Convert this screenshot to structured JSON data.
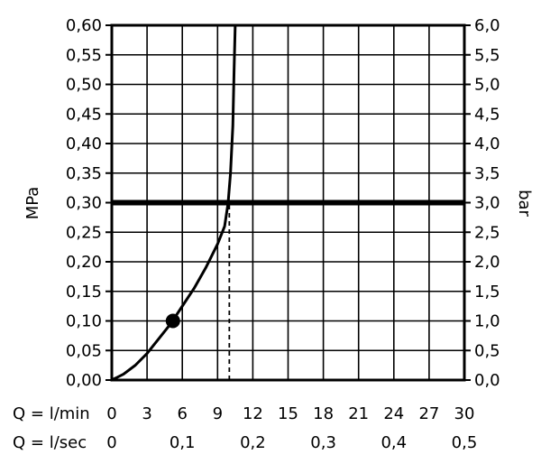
{
  "chart_data": {
    "type": "line",
    "title": "",
    "ylabel_left": "MPa",
    "ylabel_right": "bar",
    "x_primary": {
      "label": "Q = l/min",
      "ticks": [
        0,
        3,
        6,
        9,
        12,
        15,
        18,
        21,
        24,
        27,
        30
      ],
      "tick_labels": [
        "0",
        "3",
        "6",
        "9",
        "12",
        "15",
        "18",
        "21",
        "24",
        "27",
        "30"
      ],
      "range": [
        0,
        30
      ]
    },
    "x_secondary": {
      "label": "Q = l/sec",
      "ticks": [
        0,
        0.1,
        0.2,
        0.3,
        0.4,
        0.5
      ],
      "tick_labels": [
        "0",
        "0,1",
        "0,2",
        "0,3",
        "0,4",
        "0,5"
      ],
      "range": [
        0,
        0.5
      ]
    },
    "y_left": {
      "ticks": [
        0,
        0.05,
        0.1,
        0.15,
        0.2,
        0.25,
        0.3,
        0.35,
        0.4,
        0.45,
        0.5,
        0.55,
        0.6
      ],
      "tick_labels": [
        "0,00",
        "0,05",
        "0,10",
        "0,15",
        "0,20",
        "0,25",
        "0,30",
        "0,35",
        "0,40",
        "0,45",
        "0,50",
        "0,55",
        "0,60"
      ],
      "range": [
        0,
        0.6
      ]
    },
    "y_right": {
      "ticks": [
        0,
        0.5,
        1,
        1.5,
        2,
        2.5,
        3,
        3.5,
        4,
        4.5,
        5,
        5.5,
        6
      ],
      "tick_labels": [
        "0,0",
        "0,5",
        "1,0",
        "1,5",
        "2,0",
        "2,5",
        "3,0",
        "3,5",
        "4,0",
        "4,5",
        "5,0",
        "5,5",
        "6,0"
      ],
      "range": [
        0,
        6
      ]
    },
    "grid": true,
    "series": [
      {
        "x": [
          0,
          1,
          2,
          3,
          4,
          5,
          6,
          7,
          8,
          9,
          9.6,
          9.9,
          10.1,
          10.3,
          10.4,
          10.5
        ],
        "y": [
          0,
          0.01,
          0.025,
          0.045,
          0.07,
          0.095,
          0.125,
          0.155,
          0.19,
          0.23,
          0.26,
          0.3,
          0.35,
          0.43,
          0.52,
          0.6
        ]
      }
    ],
    "markers": [
      {
        "x": 5.2,
        "y": 0.1
      }
    ],
    "reference_lines": [
      {
        "orientation": "horizontal",
        "y": 0.3,
        "style": "thick"
      },
      {
        "orientation": "vertical",
        "x": 10,
        "y_to": 0.3,
        "style": "dashed"
      }
    ]
  }
}
